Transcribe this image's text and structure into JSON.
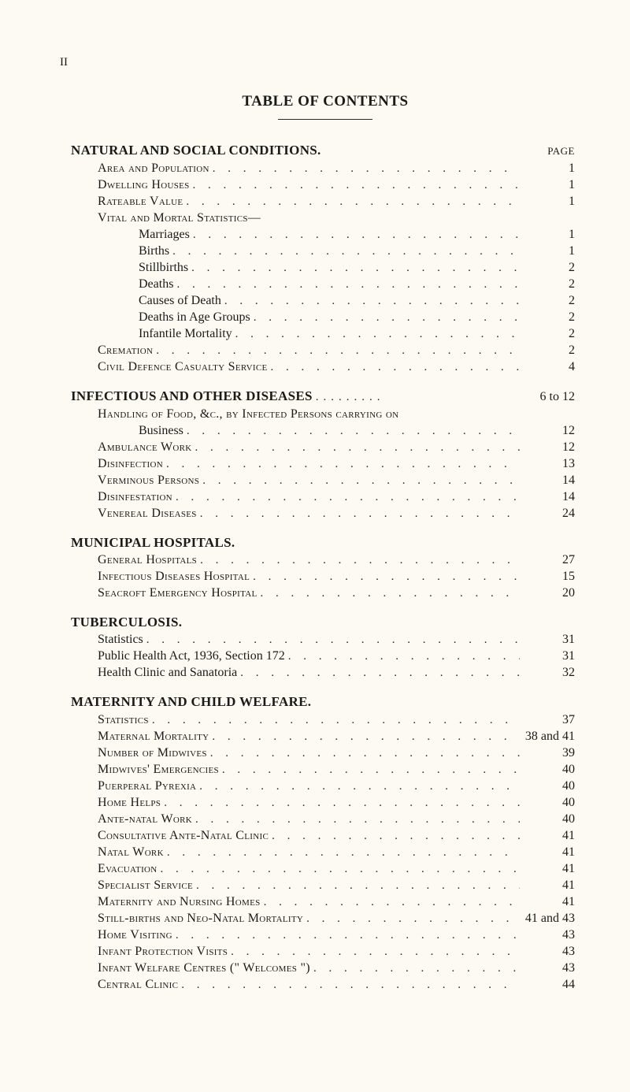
{
  "page_number_roman": "II",
  "title": "TABLE OF CONTENTS",
  "page_column_label": "PAGE",
  "sections": {
    "natural_social": {
      "title": "NATURAL AND SOCIAL CONDITIONS.",
      "items": [
        {
          "label": "Area and Population",
          "page": "1",
          "indent": 1,
          "smallcaps": true
        },
        {
          "label": "Dwelling Houses",
          "page": "1",
          "indent": 1,
          "smallcaps": true
        },
        {
          "label": "Rateable Value",
          "page": "1",
          "indent": 1,
          "smallcaps": true
        }
      ],
      "sub_heading": "Vital and Mortal Statistics—",
      "sub_items": [
        {
          "label": "Marriages",
          "page": "1",
          "indent": 2
        },
        {
          "label": "Births",
          "page": "1",
          "indent": 2
        },
        {
          "label": "Stillbirths",
          "page": "2",
          "indent": 2
        },
        {
          "label": "Deaths",
          "page": "2",
          "indent": 2
        },
        {
          "label": "Causes of Death",
          "page": "2",
          "indent": 2
        },
        {
          "label": "Deaths in Age Groups",
          "page": "2",
          "indent": 2
        },
        {
          "label": "Infantile Mortality",
          "page": "2",
          "indent": 2
        }
      ],
      "tail_items": [
        {
          "label": "Cremation",
          "page": "2",
          "indent": 1,
          "smallcaps": true
        },
        {
          "label": "Civil Defence Casualty Service",
          "page": "4",
          "indent": 1,
          "smallcaps": true
        }
      ]
    },
    "infectious": {
      "title": "INFECTIOUS AND OTHER DISEASES",
      "title_page": "6 to 12",
      "sub_heading": "Handling of Food, &c., by Infected Persons carrying on",
      "sub_items": [
        {
          "label": "Business",
          "page": "12",
          "indent": 2
        }
      ],
      "items": [
        {
          "label": "Ambulance Work",
          "page": "12",
          "indent": 1,
          "smallcaps": true
        },
        {
          "label": "Disinfection",
          "page": "13",
          "indent": 1,
          "smallcaps": true
        },
        {
          "label": "Verminous Persons",
          "page": "14",
          "indent": 1,
          "smallcaps": true
        },
        {
          "label": "Disinfestation",
          "page": "14",
          "indent": 1,
          "smallcaps": true
        },
        {
          "label": "Venereal Diseases",
          "page": "24",
          "indent": 1,
          "smallcaps": true
        }
      ]
    },
    "municipal_hospitals": {
      "title": "MUNICIPAL HOSPITALS.",
      "items": [
        {
          "label": "General Hospitals",
          "page": "27",
          "indent": 1,
          "smallcaps": true
        },
        {
          "label": "Infectious Diseases Hospital",
          "page": "15",
          "indent": 1,
          "smallcaps": true
        },
        {
          "label": "Seacroft Emergency Hospital",
          "page": "20",
          "indent": 1,
          "smallcaps": true
        }
      ]
    },
    "tuberculosis": {
      "title": "TUBERCULOSIS.",
      "items": [
        {
          "label": "Statistics",
          "page": "31",
          "indent": 1
        },
        {
          "label": "Public Health Act, 1936, Section 172",
          "page": "31",
          "indent": 1
        },
        {
          "label": "Health Clinic and Sanatoria",
          "page": "32",
          "indent": 1
        }
      ]
    },
    "maternity": {
      "title": "MATERNITY AND CHILD WELFARE.",
      "items": [
        {
          "label": "Statistics",
          "page": "37",
          "indent": 1,
          "smallcaps": true
        },
        {
          "label": "Maternal Mortality",
          "page": "38 and 41",
          "indent": 1,
          "smallcaps": true
        },
        {
          "label": "Number of Midwives",
          "page": "39",
          "indent": 1,
          "smallcaps": true
        },
        {
          "label": "Midwives' Emergencies",
          "page": "40",
          "indent": 1,
          "smallcaps": true
        },
        {
          "label": "Puerperal Pyrexia",
          "page": "40",
          "indent": 1,
          "smallcaps": true
        },
        {
          "label": "Home Helps",
          "page": "40",
          "indent": 1,
          "smallcaps": true
        },
        {
          "label": "Ante-natal Work",
          "page": "40",
          "indent": 1,
          "smallcaps": true
        },
        {
          "label": "Consultative Ante-Natal Clinic",
          "page": "41",
          "indent": 1,
          "smallcaps": true
        },
        {
          "label": "Natal Work",
          "page": "41",
          "indent": 1,
          "smallcaps": true
        },
        {
          "label": "Evacuation",
          "page": "41",
          "indent": 1,
          "smallcaps": true
        },
        {
          "label": "Specialist Service",
          "page": "41",
          "indent": 1,
          "smallcaps": true
        },
        {
          "label": "Maternity and Nursing Homes",
          "page": "41",
          "indent": 1,
          "smallcaps": true
        },
        {
          "label": "Still-births and Neo-Natal Mortality",
          "page": "41 and 43",
          "indent": 1,
          "smallcaps": true
        },
        {
          "label": "Home Visiting",
          "page": "43",
          "indent": 1,
          "smallcaps": true
        },
        {
          "label": "Infant Protection Visits",
          "page": "43",
          "indent": 1,
          "smallcaps": true
        },
        {
          "label": "Infant Welfare Centres (\" Welcomes \")",
          "page": "43",
          "indent": 1,
          "smallcaps": true
        },
        {
          "label": "Central Clinic",
          "page": "44",
          "indent": 1,
          "smallcaps": true
        }
      ]
    }
  }
}
